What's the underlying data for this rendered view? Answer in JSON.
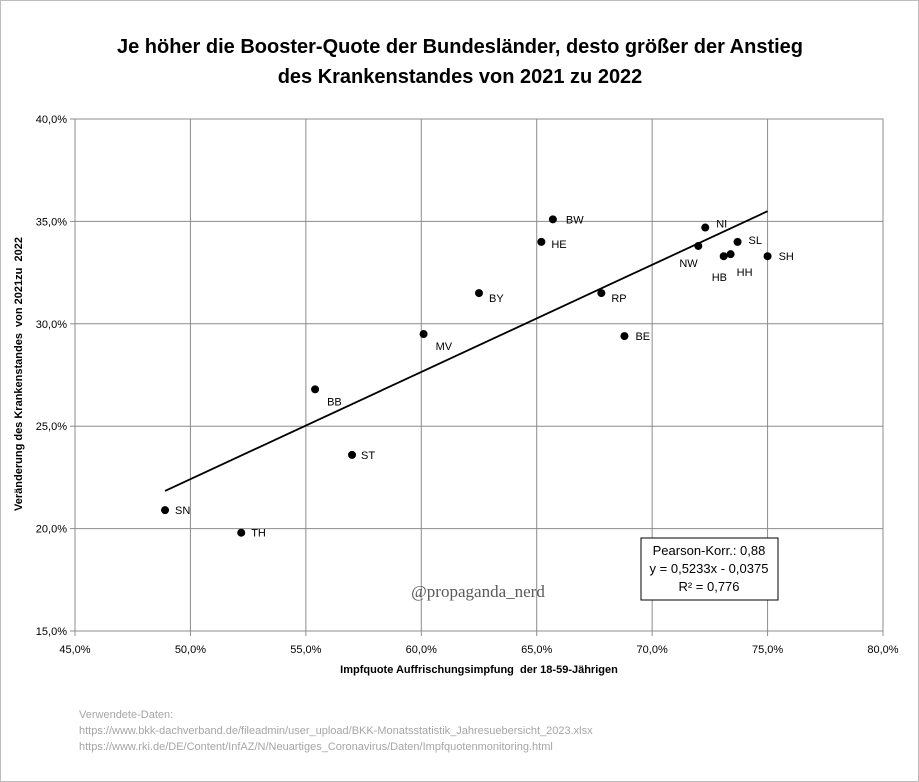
{
  "chart_data": {
    "type": "scatter",
    "title": [
      "Je höher die Booster-Quote der Bundesländer, desto größer der Anstieg",
      "des Krankenstandes von 2021 zu 2022"
    ],
    "xlabel": "Impfquote Auffrischungsimpfung  der 18-59-Jährigen",
    "ylabel": "Veränderung des Krankenstandes  von 2021zu  2022",
    "xlim": [
      0.45,
      0.8
    ],
    "ylim": [
      0.15,
      0.4
    ],
    "x_ticks": [
      0.45,
      0.5,
      0.55,
      0.6,
      0.65,
      0.7,
      0.75,
      0.8
    ],
    "x_tick_labels": [
      "45,0%",
      "50,0%",
      "55,0%",
      "60,0%",
      "65,0%",
      "70,0%",
      "75,0%",
      "80,0%"
    ],
    "y_ticks": [
      0.15,
      0.2,
      0.25,
      0.3,
      0.35,
      0.4
    ],
    "y_tick_labels": [
      "15,0%",
      "20,0%",
      "25,0%",
      "30,0%",
      "35,0%",
      "40,0%"
    ],
    "grid": true,
    "points": [
      {
        "label": "SN",
        "x": 0.489,
        "y": 0.209
      },
      {
        "label": "TH",
        "x": 0.522,
        "y": 0.198
      },
      {
        "label": "BB",
        "x": 0.554,
        "y": 0.268
      },
      {
        "label": "ST",
        "x": 0.57,
        "y": 0.236
      },
      {
        "label": "MV",
        "x": 0.601,
        "y": 0.295
      },
      {
        "label": "BY",
        "x": 0.625,
        "y": 0.315
      },
      {
        "label": "HE",
        "x": 0.652,
        "y": 0.34
      },
      {
        "label": "BW",
        "x": 0.657,
        "y": 0.351
      },
      {
        "label": "RP",
        "x": 0.678,
        "y": 0.315
      },
      {
        "label": "BE",
        "x": 0.688,
        "y": 0.294
      },
      {
        "label": "NW",
        "x": 0.72,
        "y": 0.338
      },
      {
        "label": "NI",
        "x": 0.723,
        "y": 0.347
      },
      {
        "label": "HB",
        "x": 0.731,
        "y": 0.333
      },
      {
        "label": "HH",
        "x": 0.734,
        "y": 0.334
      },
      {
        "label": "SL",
        "x": 0.737,
        "y": 0.34
      },
      {
        "label": "SH",
        "x": 0.75,
        "y": 0.333
      }
    ],
    "trendline": {
      "slope": 0.5233,
      "intercept": -0.0375,
      "x_range": [
        0.489,
        0.75
      ]
    },
    "stats_box": [
      "Pearson-Korr.: 0,88",
      "y = 0,5233x - 0,0375",
      "R² = 0,776"
    ],
    "stats_box_placement": "bottom-right",
    "watermark": "@propaganda_nerd",
    "sources": [
      "Verwendete-Daten:",
      "https://www.bkk-dachverband.de/fileadmin/user_upload/BKK-Monatsstatistik_Jahresuebersicht_2023.xlsx",
      "https://www.rki.de/DE/Content/InfAZ/N/Neuartiges_Coronavirus/Daten/Impfquotenmonitoring.html"
    ],
    "colors": {
      "marker": "#000000",
      "grid": "#8c8c8c",
      "trendline": "#000000",
      "sources": "#a6a6a6",
      "watermark": "#595959"
    }
  }
}
